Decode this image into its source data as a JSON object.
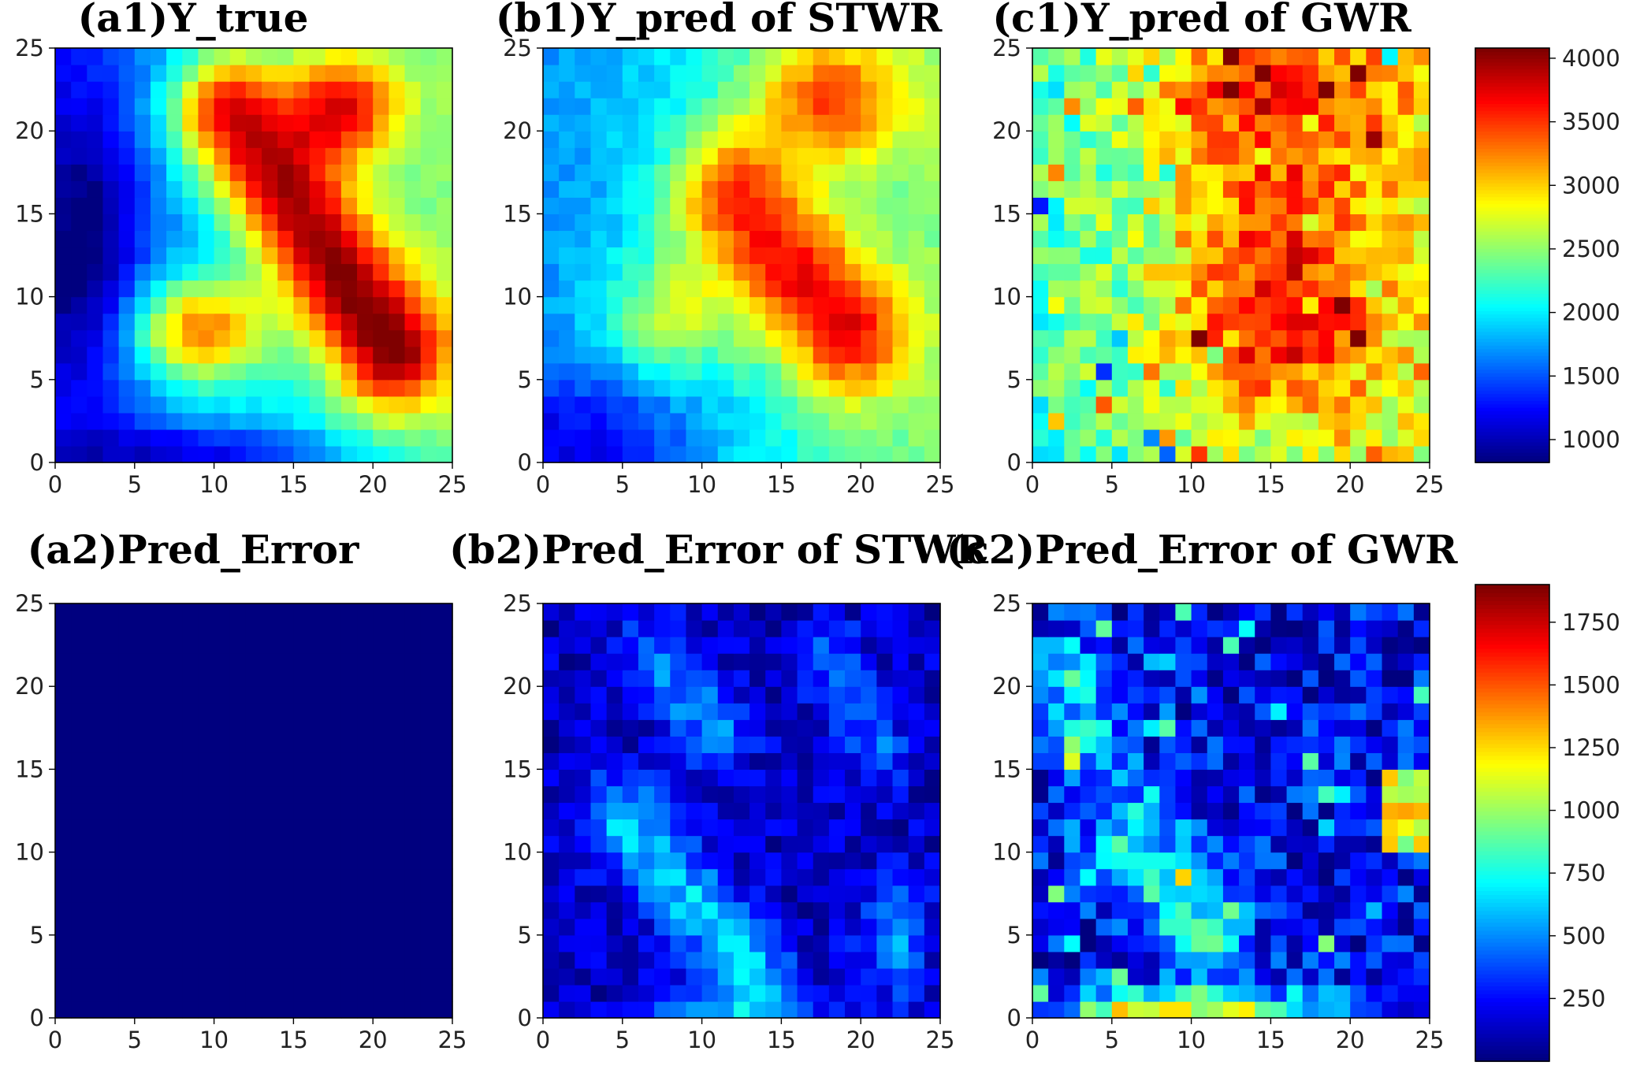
{
  "colormap": "jet",
  "colormap_stops": [
    "#00007f",
    "#0000ff",
    "#007fff",
    "#00ffff",
    "#7fff7f",
    "#ffff00",
    "#ff7f00",
    "#ff0000",
    "#7f0000"
  ],
  "chart_data": [
    {
      "id": "a1",
      "type": "heatmap",
      "title": "(a1)Y_true",
      "grid_size": 25,
      "xlim": [
        0,
        25
      ],
      "ylim": [
        0,
        25
      ],
      "xticks": [
        "0",
        "5",
        "10",
        "15",
        "20",
        "25"
      ],
      "yticks": [
        "0",
        "5",
        "10",
        "15",
        "20",
        "25"
      ],
      "colorbar_group": "top",
      "field": "y_true"
    },
    {
      "id": "b1",
      "type": "heatmap",
      "title": "(b1)Y_pred of STWR",
      "grid_size": 25,
      "xlim": [
        0,
        25
      ],
      "ylim": [
        0,
        25
      ],
      "xticks": [
        "0",
        "5",
        "10",
        "15",
        "20",
        "25"
      ],
      "yticks": [
        "0",
        "5",
        "10",
        "15",
        "20",
        "25"
      ],
      "colorbar_group": "top",
      "field": "y_pred_stwr"
    },
    {
      "id": "c1",
      "type": "heatmap",
      "title": "(c1)Y_pred of GWR",
      "grid_size": 25,
      "xlim": [
        0,
        25
      ],
      "ylim": [
        0,
        25
      ],
      "xticks": [
        "0",
        "5",
        "10",
        "15",
        "20",
        "25"
      ],
      "yticks": [
        "0",
        "5",
        "10",
        "15",
        "20",
        "25"
      ],
      "colorbar_group": "top",
      "field": "y_pred_gwr"
    },
    {
      "id": "a2",
      "type": "heatmap",
      "title": "(a2)Pred_Error",
      "grid_size": 25,
      "xlim": [
        0,
        25
      ],
      "ylim": [
        0,
        25
      ],
      "xticks": [
        "0",
        "5",
        "10",
        "15",
        "20",
        "25"
      ],
      "yticks": [
        "0",
        "5",
        "10",
        "15",
        "20",
        "25"
      ],
      "colorbar_group": "bottom",
      "field": "zero",
      "constant_value": 0
    },
    {
      "id": "b2",
      "type": "heatmap",
      "title": "(b2)Pred_Error of STWR",
      "grid_size": 25,
      "xlim": [
        0,
        25
      ],
      "ylim": [
        0,
        25
      ],
      "xticks": [
        "0",
        "5",
        "10",
        "15",
        "20",
        "25"
      ],
      "yticks": [
        "0",
        "5",
        "10",
        "15",
        "20",
        "25"
      ],
      "colorbar_group": "bottom",
      "field": "err_stwr"
    },
    {
      "id": "c2",
      "type": "heatmap",
      "title": "(c2)Pred_Error of GWR",
      "grid_size": 25,
      "xlim": [
        0,
        25
      ],
      "ylim": [
        0,
        25
      ],
      "xticks": [
        "0",
        "5",
        "10",
        "15",
        "20",
        "25"
      ],
      "yticks": [
        "0",
        "5",
        "10",
        "15",
        "20",
        "25"
      ],
      "colorbar_group": "bottom",
      "field": "err_gwr"
    }
  ],
  "colorbars": {
    "top": {
      "vmin": 820,
      "vmax": 4080,
      "ticks": [
        1000,
        1500,
        2000,
        2500,
        3000,
        3500,
        4000
      ],
      "tick_labels": [
        "1000",
        "1500",
        "2000",
        "2500",
        "3000",
        "3500",
        "4000"
      ]
    },
    "bottom": {
      "vmin": 0,
      "vmax": 1900,
      "ticks": [
        250,
        500,
        750,
        1000,
        1250,
        1500,
        1750
      ],
      "tick_labels": [
        "250",
        "500",
        "750",
        "1000",
        "1250",
        "1500",
        "1750"
      ]
    }
  }
}
